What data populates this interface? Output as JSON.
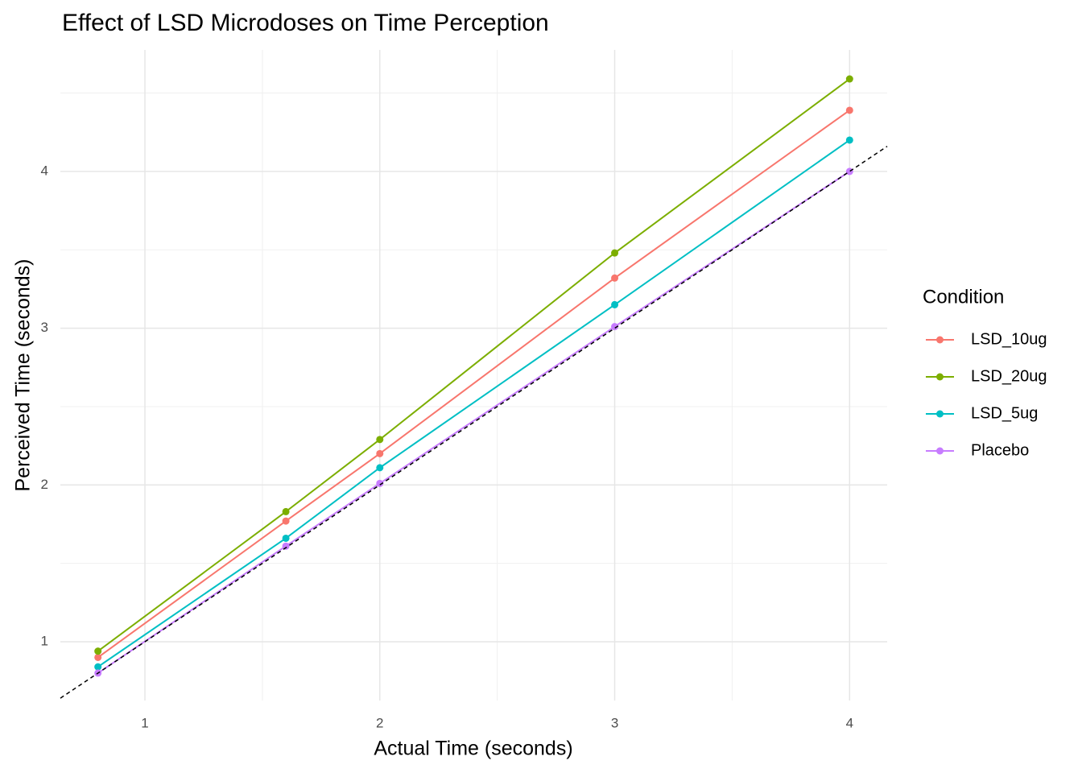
{
  "chart_data": {
    "type": "line",
    "title": "Effect of LSD Microdoses on Time Perception",
    "x_label": "Actual Time (seconds)",
    "y_label": "Perceived Time (seconds)",
    "legend_title": "Condition",
    "legend_position": "right",
    "grid": true,
    "x": [
      0.8,
      1.6,
      2,
      3,
      4
    ],
    "series": [
      {
        "name": "LSD_10ug",
        "color": "#F8766D",
        "values": [
          0.9,
          1.77,
          2.2,
          3.32,
          4.39
        ]
      },
      {
        "name": "LSD_20ug",
        "color": "#7CAE00",
        "values": [
          0.94,
          1.83,
          2.29,
          3.48,
          4.59
        ]
      },
      {
        "name": "LSD_5ug",
        "color": "#00BFC4",
        "values": [
          0.84,
          1.66,
          2.11,
          3.15,
          4.2
        ]
      },
      {
        "name": "Placebo",
        "color": "#C77CFF",
        "values": [
          0.8,
          1.61,
          2.01,
          3.01,
          4.0
        ]
      }
    ],
    "reference_line": {
      "slope": 1,
      "intercept": 0,
      "color": "#000000",
      "dashed": true
    },
    "xlim": [
      0.64,
      4.16
    ],
    "ylim": [
      0.625,
      4.775
    ],
    "xticks": [
      1,
      2,
      3,
      4
    ],
    "yticks": [
      1,
      2,
      3,
      4
    ],
    "x_minor_grid": [
      1.5,
      2.5,
      3.5
    ],
    "y_minor_grid": [
      1.5,
      2.5,
      3.5,
      4.5
    ]
  }
}
